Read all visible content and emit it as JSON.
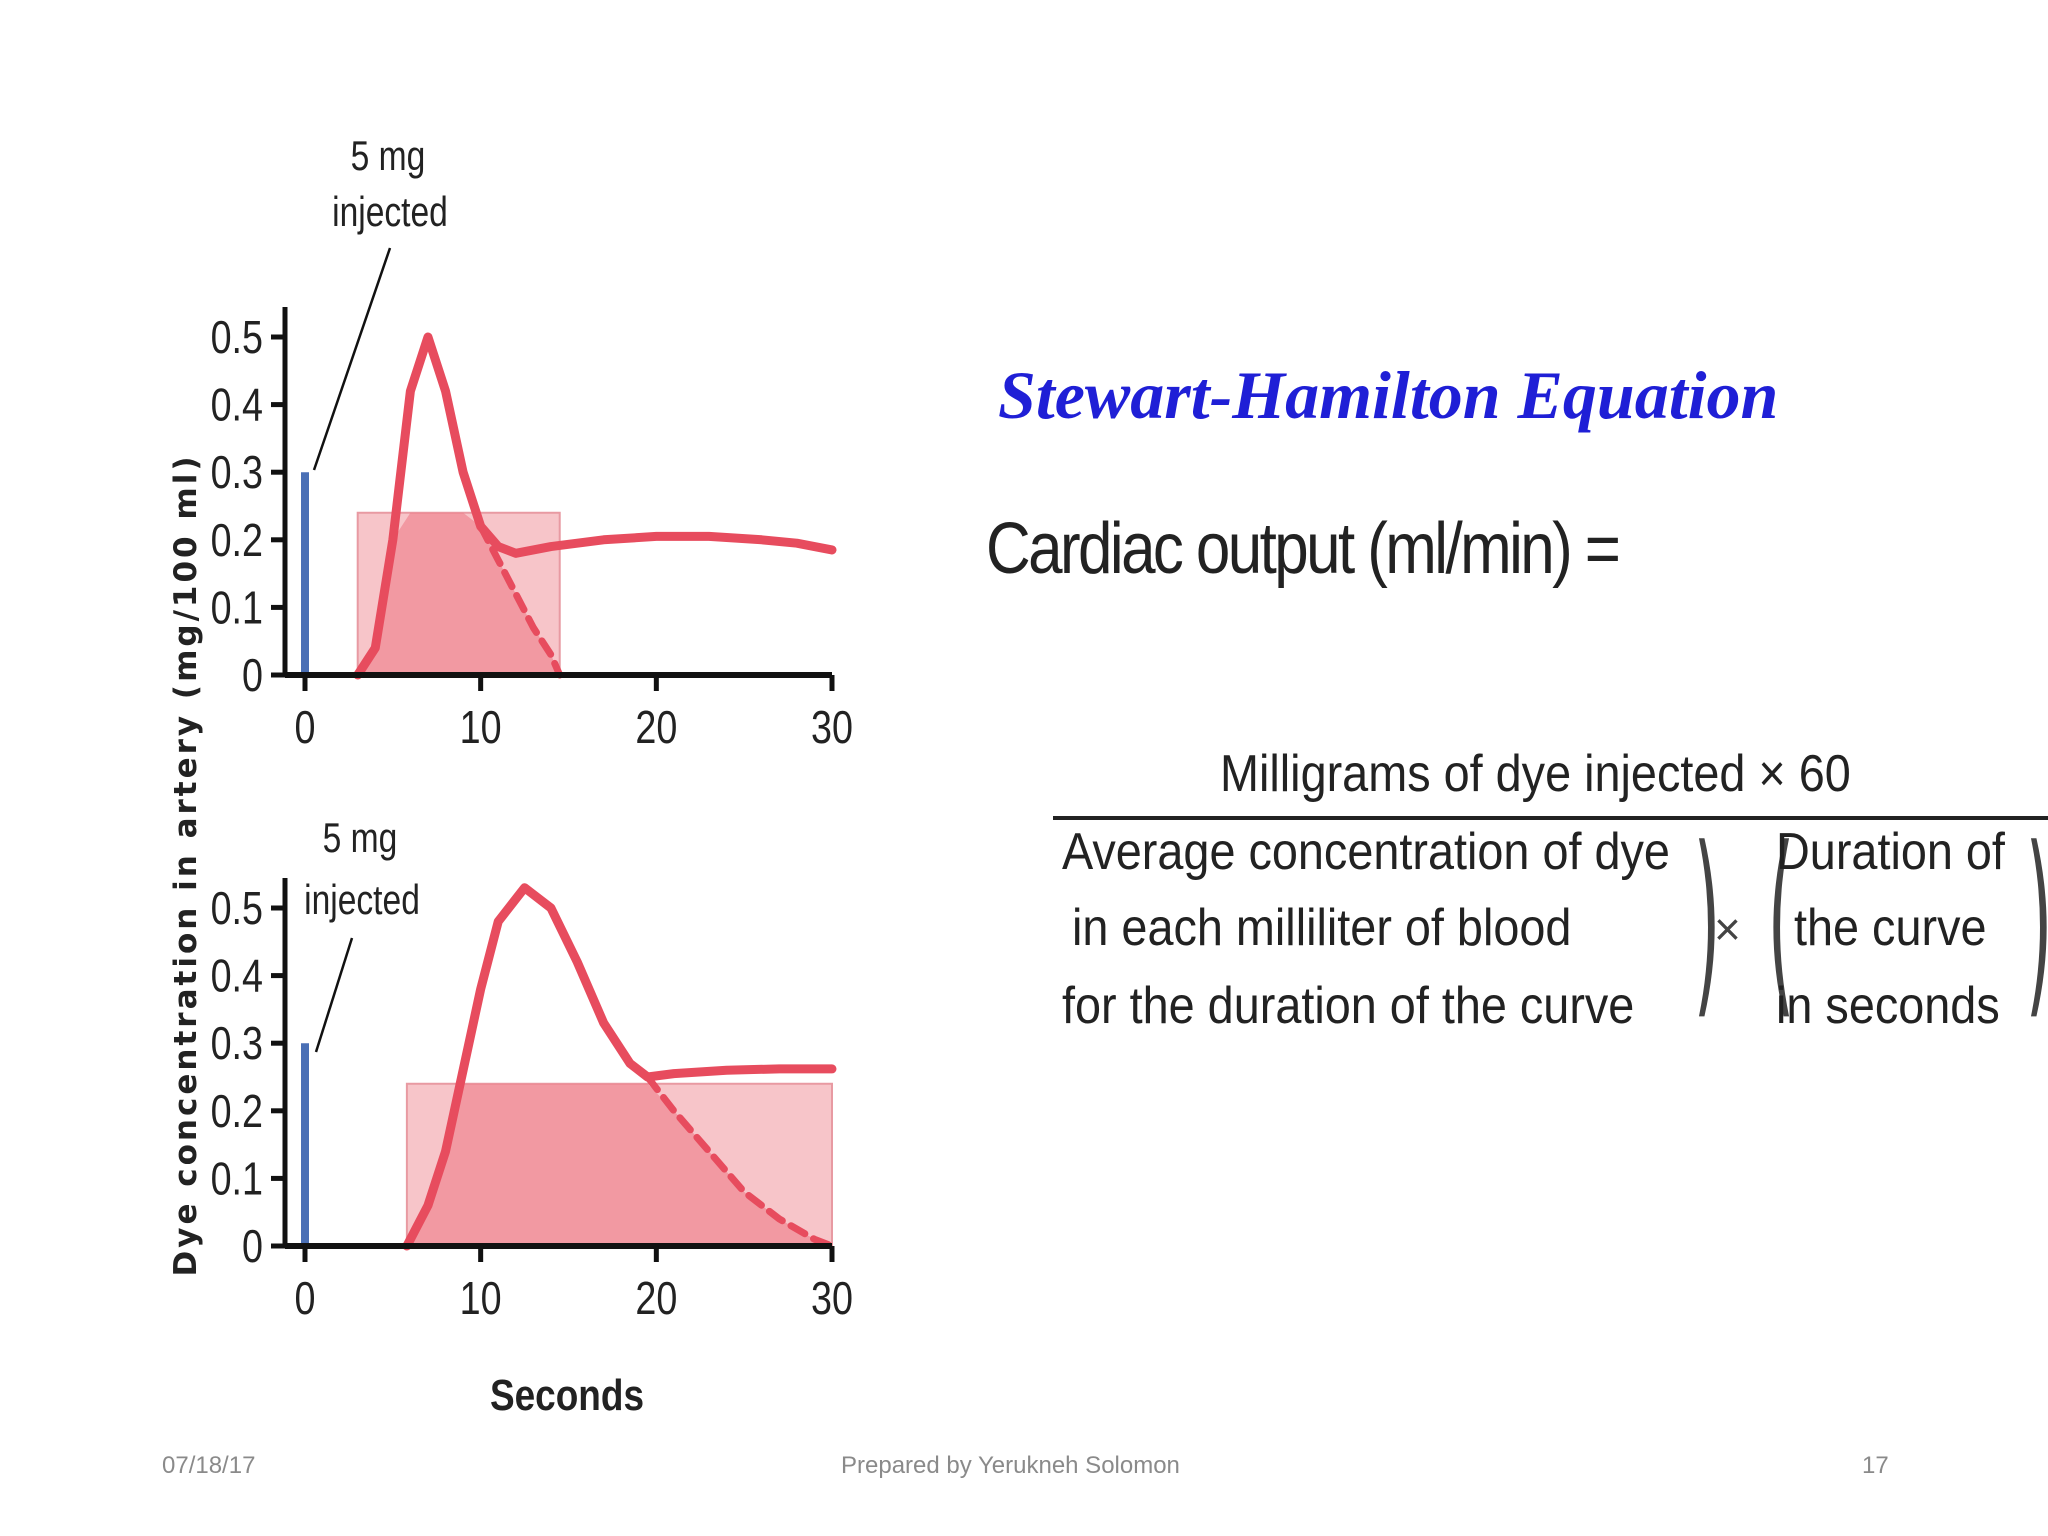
{
  "chart_data": [
    {
      "type": "line",
      "xlabel": "",
      "ylabel": "",
      "xlim": [
        0,
        30
      ],
      "ylim": [
        0,
        0.5
      ],
      "x_ticks": [
        "0",
        "10",
        "20",
        "30"
      ],
      "y_ticks": [
        "0",
        "0.1",
        "0.2",
        "0.3",
        "0.4",
        "0.5"
      ],
      "annotation": [
        "5 mg",
        "injected"
      ],
      "injection_bar": {
        "x": 0,
        "value": 0.3
      },
      "series": [
        {
          "values": [
            [
              3.0,
              0.0
            ],
            [
              4.0,
              0.04
            ],
            [
              5.0,
              0.2
            ],
            [
              6.0,
              0.42
            ],
            [
              7.0,
              0.5
            ],
            [
              8.0,
              0.42
            ],
            [
              9.0,
              0.3
            ],
            [
              10.0,
              0.22
            ],
            [
              11.0,
              0.19
            ],
            [
              12.0,
              0.18
            ],
            [
              14.0,
              0.19
            ],
            [
              17.0,
              0.2
            ],
            [
              20.0,
              0.205
            ],
            [
              23.0,
              0.205
            ],
            [
              26.0,
              0.2
            ],
            [
              28.0,
              0.195
            ],
            [
              30.0,
              0.185
            ]
          ],
          "color": "#e74c5e"
        },
        {
          "values": [
            [
              10.0,
              0.22
            ],
            [
              11.0,
              0.17
            ],
            [
              12.0,
              0.12
            ],
            [
              13.0,
              0.07
            ],
            [
              14.0,
              0.03
            ],
            [
              14.5,
              0.0
            ]
          ],
          "color": "#e74c5e",
          "dashed": true
        }
      ],
      "area": {
        "x_start": 3,
        "x_end": 14.5,
        "value": 0.24,
        "color": "#f08b94"
      }
    },
    {
      "type": "line",
      "xlabel": "Seconds",
      "ylabel": "",
      "xlim": [
        0,
        30
      ],
      "ylim": [
        0,
        0.5
      ],
      "x_ticks": [
        "0",
        "10",
        "20",
        "30"
      ],
      "y_ticks": [
        "0",
        "0.1",
        "0.2",
        "0.3",
        "0.4",
        "0.5"
      ],
      "annotation": [
        "5 mg",
        "injected"
      ],
      "injection_bar": {
        "x": 0,
        "value": 0.3
      },
      "series": [
        {
          "values": [
            [
              5.8,
              0.0
            ],
            [
              7.0,
              0.06
            ],
            [
              8.0,
              0.14
            ],
            [
              9.0,
              0.26
            ],
            [
              10.0,
              0.38
            ],
            [
              11.0,
              0.48
            ],
            [
              12.5,
              0.53
            ],
            [
              14.0,
              0.5
            ],
            [
              15.5,
              0.42
            ],
            [
              17.0,
              0.33
            ],
            [
              18.5,
              0.27
            ],
            [
              19.5,
              0.25
            ],
            [
              21.0,
              0.255
            ],
            [
              24.0,
              0.26
            ],
            [
              27.0,
              0.262
            ],
            [
              30.0,
              0.262
            ]
          ],
          "color": "#e74c5e"
        },
        {
          "values": [
            [
              19.5,
              0.25
            ],
            [
              21.0,
              0.2
            ],
            [
              23.0,
              0.14
            ],
            [
              25.0,
              0.08
            ],
            [
              27.0,
              0.04
            ],
            [
              29.0,
              0.01
            ],
            [
              30.0,
              0.0
            ]
          ],
          "color": "#e74c5e",
          "dashed": true
        }
      ],
      "area": {
        "x_start": 5.8,
        "x_end": 30,
        "value": 0.24,
        "color": "#f08b94"
      }
    }
  ],
  "shared_ylabel": "Dye concentration in artery (mg/100 ml)",
  "equation": {
    "title": "Stewart-Hamilton Equation",
    "lhs": "Cardiac output (ml/min) =",
    "numerator": "Milligrams of dye injected × 60",
    "denominator_left": [
      "Average concentration of dye",
      "in each milliliter of blood",
      "for the duration of the curve"
    ],
    "times": "×",
    "denominator_right": [
      "Duration of",
      "the curve",
      "in seconds"
    ]
  },
  "footer": {
    "date": "07/18/17",
    "author": "Prepared by Yerukneh Solomon",
    "page": "17"
  }
}
